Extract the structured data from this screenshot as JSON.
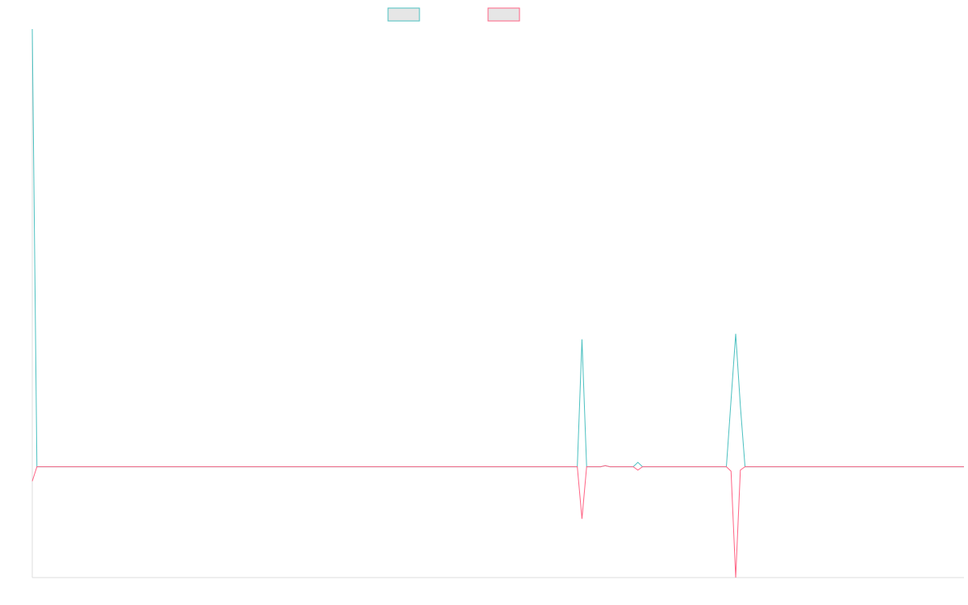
{
  "chart_data": {
    "type": "line",
    "title": "",
    "xlabel": "",
    "ylabel": "",
    "grid": false,
    "legend": "top-center",
    "x": [
      0,
      1,
      2,
      3,
      4,
      5,
      6,
      7,
      8,
      9,
      10,
      11,
      12,
      13,
      14,
      15,
      16,
      17,
      18,
      19,
      20,
      21,
      22,
      23,
      24,
      25,
      26,
      27,
      28,
      29,
      30,
      31,
      32,
      33,
      34,
      35,
      36,
      37,
      38,
      39,
      40,
      41,
      42,
      43,
      44,
      45,
      46,
      47,
      48,
      49,
      50,
      51,
      52,
      53,
      54,
      55,
      56,
      57,
      58,
      59,
      60,
      61,
      62,
      63,
      64,
      65,
      66,
      67,
      68,
      69,
      70,
      71,
      72,
      73,
      74,
      75,
      76,
      77,
      78,
      79,
      80,
      81,
      82,
      83,
      84,
      85,
      86,
      87,
      88,
      89,
      90,
      91,
      92,
      93,
      94,
      95,
      96,
      97,
      98,
      99,
      100,
      101,
      102,
      103,
      104,
      105,
      106,
      107,
      108,
      109,
      110,
      111,
      112,
      113,
      114,
      115,
      116,
      117,
      118,
      119,
      120,
      121,
      122,
      123,
      124,
      125,
      126,
      127,
      128,
      129,
      130,
      131,
      132,
      133,
      134,
      135,
      136,
      137,
      138,
      139,
      140,
      141,
      142,
      143,
      144,
      145,
      146,
      147,
      148,
      149,
      150,
      151,
      152,
      153,
      154,
      155,
      156,
      157,
      158,
      159,
      160,
      161,
      162,
      163,
      164,
      165,
      166,
      167,
      168,
      169,
      170,
      171,
      172,
      173,
      174,
      175,
      176,
      177,
      178,
      179,
      180,
      181,
      182,
      183,
      184,
      185,
      186,
      187,
      188,
      189,
      190,
      191,
      192,
      193,
      194,
      195,
      196,
      197,
      198,
      199,
      200
    ],
    "ylim": [
      -100,
      395
    ],
    "xlim": [
      0,
      200
    ],
    "series": [
      {
        "color": "#4bc0c0",
        "spikes": [
          [
            0,
            395
          ],
          [
            1,
            0
          ],
          [
            117,
            0
          ],
          [
            118,
            115
          ],
          [
            119,
            0
          ],
          [
            122,
            0
          ],
          [
            123,
            1
          ],
          [
            124,
            0
          ],
          [
            129,
            0
          ],
          [
            130,
            4
          ],
          [
            131,
            0
          ],
          [
            149,
            0
          ],
          [
            150,
            60
          ],
          [
            151,
            120
          ],
          [
            152,
            55
          ],
          [
            153,
            0
          ]
        ]
      },
      {
        "color": "#ff6384",
        "spikes": [
          [
            0,
            -13
          ],
          [
            1,
            0
          ],
          [
            117,
            0
          ],
          [
            118,
            -47
          ],
          [
            119,
            0
          ],
          [
            122,
            0
          ],
          [
            123,
            1
          ],
          [
            124,
            0
          ],
          [
            129,
            0
          ],
          [
            130,
            -3
          ],
          [
            131,
            0
          ],
          [
            149,
            0
          ],
          [
            150,
            -4
          ],
          [
            151,
            -100
          ],
          [
            152,
            -3
          ],
          [
            153,
            0
          ]
        ]
      }
    ]
  }
}
